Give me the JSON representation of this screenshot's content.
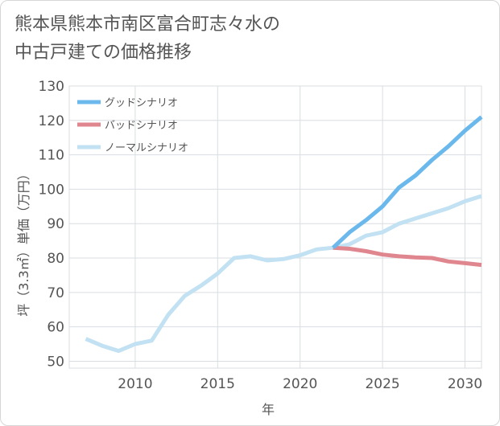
{
  "title_line1": "熊本県熊本市南区富合町志々水の",
  "title_line2": "中古戸建ての価格推移",
  "chart_data": {
    "type": "line",
    "xlabel": "年",
    "ylabel": "坪（3.3㎡）単価（万円）",
    "xlim": [
      2006,
      2031
    ],
    "ylim": [
      48,
      130
    ],
    "xticks": [
      2010,
      2015,
      2020,
      2025,
      2030
    ],
    "yticks": [
      50,
      60,
      70,
      80,
      90,
      100,
      110,
      120,
      130
    ],
    "grid": true,
    "legend_position": "top-left",
    "series": [
      {
        "name": "グッドシナリオ",
        "color": "#6bb8ec",
        "x": [
          2022,
          2023,
          2024,
          2025,
          2026,
          2027,
          2028,
          2029,
          2030,
          2031
        ],
        "y": [
          83,
          87.5,
          91,
          95,
          100.5,
          104,
          108.5,
          112.5,
          117,
          121
        ]
      },
      {
        "name": "バッドシナリオ",
        "color": "#e0868f",
        "x": [
          2022,
          2023,
          2024,
          2025,
          2026,
          2027,
          2028,
          2029,
          2030,
          2031
        ],
        "y": [
          83,
          82.7,
          82,
          81,
          80.5,
          80.2,
          80,
          79,
          78.5,
          78
        ]
      },
      {
        "name": "ノーマルシナリオ",
        "color": "#c2e1f2",
        "x": [
          2007,
          2008,
          2009,
          2010,
          2011,
          2012,
          2013,
          2014,
          2015,
          2016,
          2017,
          2018,
          2019,
          2020,
          2021,
          2022,
          2023,
          2024,
          2025,
          2026,
          2027,
          2028,
          2029,
          2030,
          2031
        ],
        "y": [
          56.5,
          54.5,
          53,
          55,
          56,
          63.5,
          69,
          72,
          75.5,
          80,
          80.5,
          79.3,
          79.7,
          80.8,
          82.5,
          83,
          84,
          86.5,
          87.5,
          90,
          91.5,
          93,
          94.5,
          96.5,
          98
        ]
      }
    ]
  }
}
